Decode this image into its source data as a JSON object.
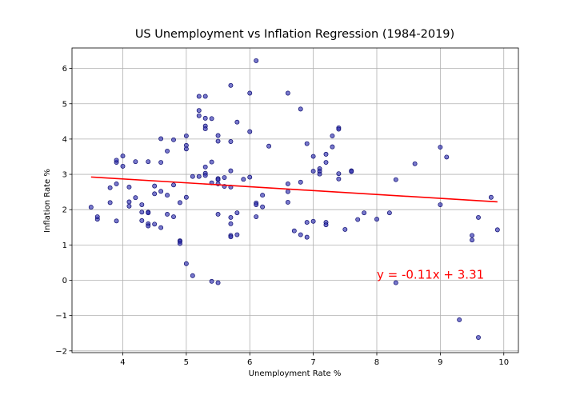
{
  "chart_data": {
    "type": "scatter",
    "title": "US Unemployment vs Inflation Regression (1984-2019)",
    "xlabel": "Unemployment Rate %",
    "ylabel": "Inflation Rate %",
    "xlim": [
      3.2,
      10.23
    ],
    "ylim": [
      -2.05,
      6.58
    ],
    "xticks": [
      4,
      5,
      6,
      7,
      8,
      9,
      10
    ],
    "yticks": [
      -2,
      -1,
      0,
      1,
      2,
      3,
      4,
      5,
      6
    ],
    "grid": true,
    "marker_color": "#3030b0",
    "marker_edge": "#0b0b6e",
    "regression": {
      "slope": -0.11,
      "intercept": 3.31,
      "x_start": 3.5,
      "x_end": 9.9,
      "color": "#ff0000",
      "label": "y = -0.11x + 3.31",
      "label_anchor": [
        8.0,
        0.05
      ]
    },
    "points": [
      [
        3.5,
        2.07
      ],
      [
        3.6,
        1.73
      ],
      [
        3.6,
        1.8
      ],
      [
        3.8,
        2.2
      ],
      [
        3.8,
        2.62
      ],
      [
        3.9,
        3.34
      ],
      [
        3.9,
        3.4
      ],
      [
        3.9,
        2.73
      ],
      [
        3.9,
        1.68
      ],
      [
        4.0,
        3.52
      ],
      [
        4.0,
        3.23
      ],
      [
        4.1,
        2.64
      ],
      [
        4.1,
        2.22
      ],
      [
        4.1,
        2.1
      ],
      [
        4.2,
        3.36
      ],
      [
        4.2,
        2.34
      ],
      [
        4.3,
        2.14
      ],
      [
        4.3,
        1.93
      ],
      [
        4.3,
        1.69
      ],
      [
        4.4,
        3.36
      ],
      [
        4.4,
        1.93
      ],
      [
        4.4,
        1.91
      ],
      [
        4.4,
        1.6
      ],
      [
        4.4,
        1.54
      ],
      [
        4.5,
        2.67
      ],
      [
        4.5,
        2.45
      ],
      [
        4.5,
        1.59
      ],
      [
        4.6,
        4.01
      ],
      [
        4.6,
        3.34
      ],
      [
        4.6,
        2.52
      ],
      [
        4.6,
        1.49
      ],
      [
        4.7,
        3.66
      ],
      [
        4.7,
        2.41
      ],
      [
        4.7,
        1.87
      ],
      [
        4.8,
        3.98
      ],
      [
        4.8,
        2.7
      ],
      [
        4.8,
        1.8
      ],
      [
        4.9,
        2.2
      ],
      [
        4.9,
        1.12
      ],
      [
        4.9,
        1.1
      ],
      [
        4.9,
        1.04
      ],
      [
        5.0,
        4.09
      ],
      [
        5.0,
        3.82
      ],
      [
        5.0,
        3.72
      ],
      [
        5.0,
        2.35
      ],
      [
        5.0,
        0.47
      ],
      [
        5.1,
        2.94
      ],
      [
        5.1,
        0.13
      ],
      [
        5.2,
        5.21
      ],
      [
        5.2,
        4.81
      ],
      [
        5.2,
        4.66
      ],
      [
        5.2,
        2.94
      ],
      [
        5.3,
        5.21
      ],
      [
        5.3,
        4.59
      ],
      [
        5.3,
        4.37
      ],
      [
        5.3,
        4.29
      ],
      [
        5.3,
        3.21
      ],
      [
        5.3,
        3.03
      ],
      [
        5.3,
        2.97
      ],
      [
        5.4,
        4.58
      ],
      [
        5.4,
        3.35
      ],
      [
        5.4,
        2.76
      ],
      [
        5.4,
        -0.03
      ],
      [
        5.5,
        4.1
      ],
      [
        5.5,
        3.94
      ],
      [
        5.5,
        2.88
      ],
      [
        5.5,
        2.85
      ],
      [
        5.5,
        2.73
      ],
      [
        5.5,
        1.87
      ],
      [
        5.5,
        -0.07
      ],
      [
        5.6,
        2.91
      ],
      [
        5.6,
        2.66
      ],
      [
        5.7,
        5.52
      ],
      [
        5.7,
        3.93
      ],
      [
        5.7,
        3.1
      ],
      [
        5.7,
        2.64
      ],
      [
        5.7,
        1.78
      ],
      [
        5.7,
        1.6
      ],
      [
        5.7,
        1.27
      ],
      [
        5.7,
        1.23
      ],
      [
        5.8,
        4.48
      ],
      [
        5.8,
        1.91
      ],
      [
        5.8,
        1.29
      ],
      [
        5.9,
        2.86
      ],
      [
        6.0,
        5.3
      ],
      [
        6.0,
        4.21
      ],
      [
        6.0,
        2.92
      ],
      [
        6.1,
        6.22
      ],
      [
        6.1,
        2.19
      ],
      [
        6.1,
        2.14
      ],
      [
        6.1,
        1.8
      ],
      [
        6.2,
        2.41
      ],
      [
        6.2,
        2.08
      ],
      [
        6.3,
        3.8
      ],
      [
        6.6,
        5.3
      ],
      [
        6.6,
        2.73
      ],
      [
        6.6,
        2.51
      ],
      [
        6.6,
        2.21
      ],
      [
        6.7,
        1.4
      ],
      [
        6.8,
        4.85
      ],
      [
        6.8,
        2.78
      ],
      [
        6.8,
        1.29
      ],
      [
        6.9,
        3.87
      ],
      [
        6.9,
        1.64
      ],
      [
        6.9,
        1.22
      ],
      [
        7.0,
        3.51
      ],
      [
        7.0,
        3.09
      ],
      [
        7.0,
        1.67
      ],
      [
        7.1,
        3.16
      ],
      [
        7.1,
        3.09
      ],
      [
        7.1,
        3.01
      ],
      [
        7.2,
        3.57
      ],
      [
        7.2,
        3.34
      ],
      [
        7.2,
        1.64
      ],
      [
        7.2,
        1.57
      ],
      [
        7.3,
        4.09
      ],
      [
        7.3,
        3.78
      ],
      [
        7.4,
        4.32
      ],
      [
        7.4,
        4.28
      ],
      [
        7.4,
        3.02
      ],
      [
        7.4,
        2.87
      ],
      [
        7.5,
        1.44
      ],
      [
        7.6,
        3.1
      ],
      [
        7.6,
        3.08
      ],
      [
        7.7,
        1.72
      ],
      [
        7.8,
        1.91
      ],
      [
        8.0,
        1.73
      ],
      [
        8.2,
        1.91
      ],
      [
        8.3,
        2.85
      ],
      [
        8.3,
        -0.07
      ],
      [
        8.6,
        3.3
      ],
      [
        9.0,
        3.77
      ],
      [
        9.0,
        2.14
      ],
      [
        9.1,
        3.49
      ],
      [
        9.3,
        -1.12
      ],
      [
        9.5,
        1.27
      ],
      [
        9.5,
        1.14
      ],
      [
        9.6,
        1.78
      ],
      [
        9.6,
        -1.62
      ],
      [
        9.8,
        2.35
      ],
      [
        9.9,
        1.43
      ]
    ]
  }
}
